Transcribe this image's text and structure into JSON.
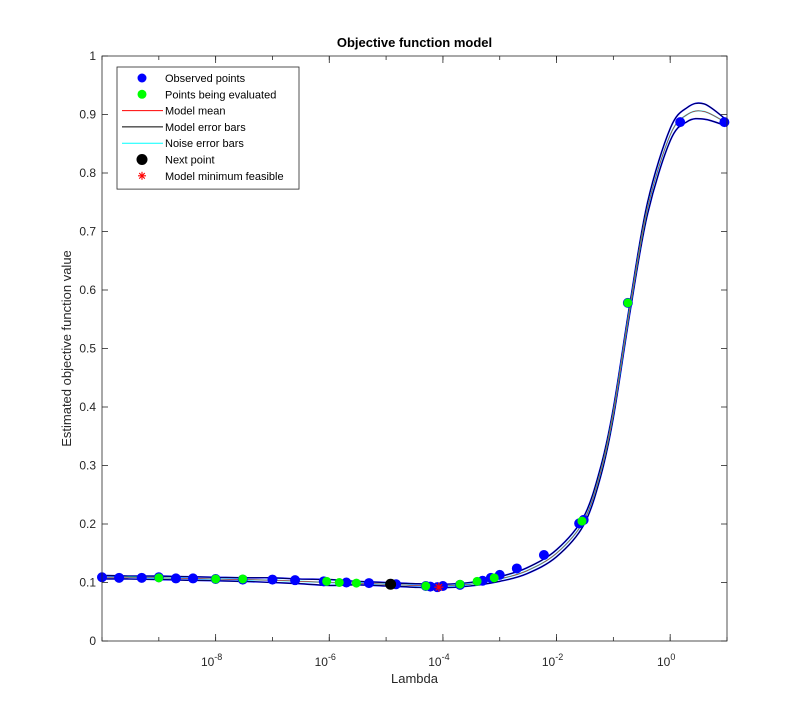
{
  "chart_data": {
    "type": "line",
    "title": "Objective function model",
    "xlabel": "Lambda",
    "ylabel": "Estimated objective function value",
    "xscale": "log",
    "xlim": [
      1e-10,
      10
    ],
    "ylim": [
      0,
      1
    ],
    "yticks": [
      0,
      0.1,
      0.2,
      0.3,
      0.4,
      0.5,
      0.6,
      0.7,
      0.8,
      0.9,
      1
    ],
    "ytick_labels": [
      "0",
      "0.1",
      "0.2",
      "0.3",
      "0.4",
      "0.5",
      "0.6",
      "0.7",
      "0.8",
      "0.9",
      "1"
    ],
    "xticks": [
      1e-08,
      1e-06,
      0.0001,
      0.01,
      1
    ],
    "xtick_labels": [
      {
        "base": "10",
        "exp": "-8"
      },
      {
        "base": "10",
        "exp": "-6"
      },
      {
        "base": "10",
        "exp": "-4"
      },
      {
        "base": "10",
        "exp": "-2"
      },
      {
        "base": "10",
        "exp": "0"
      }
    ],
    "grid": false,
    "legend_position": "top-left",
    "legend": [
      {
        "label": "Observed points",
        "kind": "marker",
        "color": "#0000ff"
      },
      {
        "label": "Points being evaluated",
        "kind": "marker",
        "color": "#00ff00"
      },
      {
        "label": "Model mean",
        "kind": "line",
        "color": "#ff0000"
      },
      {
        "label": "Model error bars",
        "kind": "line",
        "color": "#000000"
      },
      {
        "label": "Noise error bars",
        "kind": "line",
        "color": "#00ffff"
      },
      {
        "label": "Next point",
        "kind": "marker",
        "color": "#000000"
      },
      {
        "label": "Model minimum feasible",
        "kind": "star",
        "color": "#ff0000"
      }
    ],
    "colors": {
      "observed": "#0000ff",
      "evaluating": "#00ff00",
      "model_mean": "#ff0000",
      "model_error": "#000000",
      "noise_error": "#00ffff",
      "next_point": "#000000",
      "model_min": "#ff0000",
      "error_band_fill": "#0000ff"
    },
    "model_mean": [
      [
        1e-10,
        0.109
      ],
      [
        3e-10,
        0.109
      ],
      [
        1e-09,
        0.108
      ],
      [
        3e-09,
        0.107
      ],
      [
        1e-08,
        0.106
      ],
      [
        3e-08,
        0.105
      ],
      [
        1e-07,
        0.104
      ],
      [
        3e-07,
        0.102
      ],
      [
        1e-06,
        0.1
      ],
      [
        3e-06,
        0.099
      ],
      [
        1e-05,
        0.097
      ],
      [
        3e-05,
        0.095
      ],
      [
        0.0001,
        0.094
      ],
      [
        0.0003,
        0.097
      ],
      [
        0.001,
        0.106
      ],
      [
        0.003,
        0.12
      ],
      [
        0.01,
        0.15
      ],
      [
        0.03,
        0.205
      ],
      [
        0.06,
        0.29
      ],
      [
        0.1,
        0.39
      ],
      [
        0.2,
        0.575
      ],
      [
        0.4,
        0.74
      ],
      [
        1,
        0.865
      ],
      [
        2,
        0.9
      ],
      [
        4,
        0.905
      ],
      [
        10,
        0.885
      ]
    ],
    "model_upper": [
      [
        1e-10,
        0.112
      ],
      [
        3e-10,
        0.111
      ],
      [
        1e-09,
        0.111
      ],
      [
        3e-09,
        0.11
      ],
      [
        1e-08,
        0.109
      ],
      [
        3e-08,
        0.108
      ],
      [
        1e-07,
        0.108
      ],
      [
        3e-07,
        0.106
      ],
      [
        1e-06,
        0.105
      ],
      [
        3e-06,
        0.102
      ],
      [
        1e-05,
        0.1
      ],
      [
        3e-05,
        0.098
      ],
      [
        0.0001,
        0.097
      ],
      [
        0.0003,
        0.1
      ],
      [
        0.001,
        0.11
      ],
      [
        0.003,
        0.125
      ],
      [
        0.01,
        0.156
      ],
      [
        0.03,
        0.212
      ],
      [
        0.06,
        0.298
      ],
      [
        0.1,
        0.398
      ],
      [
        0.2,
        0.583
      ],
      [
        0.4,
        0.75
      ],
      [
        1,
        0.876
      ],
      [
        2,
        0.912
      ],
      [
        4,
        0.918
      ],
      [
        10,
        0.89
      ]
    ],
    "model_lower": [
      [
        1e-10,
        0.106
      ],
      [
        3e-10,
        0.106
      ],
      [
        1e-09,
        0.105
      ],
      [
        3e-09,
        0.104
      ],
      [
        1e-08,
        0.103
      ],
      [
        3e-08,
        0.102
      ],
      [
        1e-07,
        0.1
      ],
      [
        3e-07,
        0.098
      ],
      [
        1e-06,
        0.095
      ],
      [
        3e-06,
        0.096
      ],
      [
        1e-05,
        0.094
      ],
      [
        3e-05,
        0.092
      ],
      [
        0.0001,
        0.091
      ],
      [
        0.0003,
        0.094
      ],
      [
        0.001,
        0.102
      ],
      [
        0.003,
        0.115
      ],
      [
        0.01,
        0.144
      ],
      [
        0.03,
        0.198
      ],
      [
        0.06,
        0.282
      ],
      [
        0.1,
        0.382
      ],
      [
        0.2,
        0.567
      ],
      [
        0.4,
        0.73
      ],
      [
        1,
        0.855
      ],
      [
        2,
        0.888
      ],
      [
        4,
        0.892
      ],
      [
        10,
        0.88
      ]
    ],
    "observed_points": [
      [
        1e-10,
        0.109
      ],
      [
        2e-10,
        0.108
      ],
      [
        5e-10,
        0.108
      ],
      [
        1e-09,
        0.109
      ],
      [
        2e-09,
        0.107
      ],
      [
        4e-09,
        0.107
      ],
      [
        1e-08,
        0.106
      ],
      [
        3e-08,
        0.105
      ],
      [
        1e-07,
        0.105
      ],
      [
        2.5e-07,
        0.104
      ],
      [
        8e-07,
        0.102
      ],
      [
        2e-06,
        0.1
      ],
      [
        5e-06,
        0.099
      ],
      [
        1.5e-05,
        0.097
      ],
      [
        5e-05,
        0.094
      ],
      [
        6e-05,
        0.093
      ],
      [
        8e-05,
        0.092
      ],
      [
        0.0001,
        0.094
      ],
      [
        0.0002,
        0.096
      ],
      [
        0.0005,
        0.103
      ],
      [
        0.0007,
        0.108
      ],
      [
        0.001,
        0.113
      ],
      [
        0.002,
        0.124
      ],
      [
        0.006,
        0.147
      ],
      [
        0.025,
        0.201
      ],
      [
        0.03,
        0.207
      ],
      [
        0.18,
        0.578
      ],
      [
        1.5,
        0.887
      ],
      [
        9,
        0.887
      ]
    ],
    "evaluating_points": [
      [
        1e-09,
        0.108
      ],
      [
        1e-08,
        0.106
      ],
      [
        3e-08,
        0.106
      ],
      [
        9e-07,
        0.102
      ],
      [
        1.5e-06,
        0.1
      ],
      [
        3e-06,
        0.099
      ],
      [
        5e-05,
        0.094
      ],
      [
        0.0002,
        0.097
      ],
      [
        0.0004,
        0.102
      ],
      [
        0.0008,
        0.108
      ],
      [
        0.028,
        0.205
      ],
      [
        0.18,
        0.578
      ]
    ],
    "next_point": [
      1.2e-05,
      0.097
    ],
    "model_minimum": [
      8.5e-05,
      0.092
    ]
  }
}
